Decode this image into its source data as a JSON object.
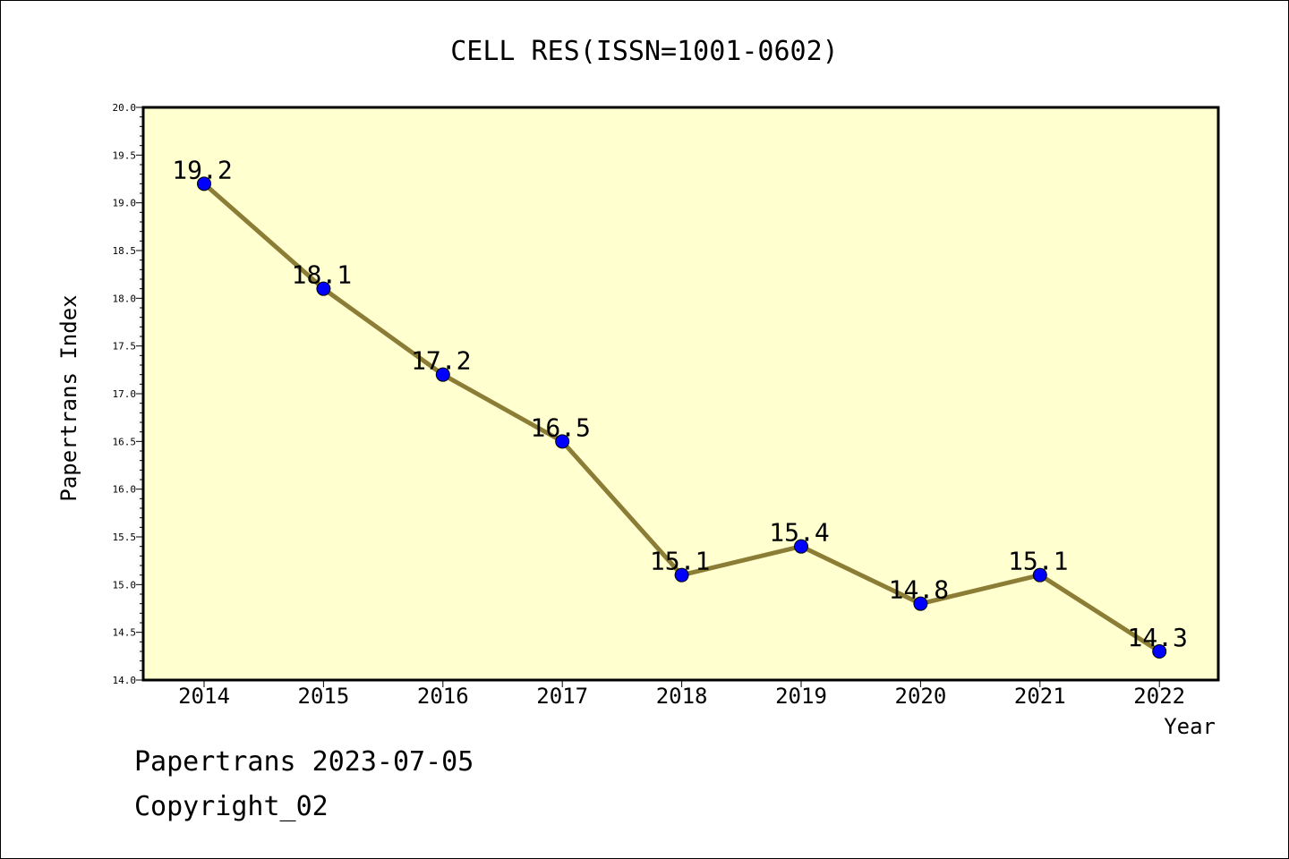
{
  "chart_data": {
    "type": "line",
    "title": "CELL RES(ISSN=1001-0602)",
    "xlabel": "Year",
    "ylabel": "Papertrans Index",
    "x": [
      "2014",
      "2015",
      "2016",
      "2017",
      "2018",
      "2019",
      "2020",
      "2021",
      "2022"
    ],
    "series": [
      {
        "values": [
          19.2,
          18.1,
          17.2,
          16.5,
          15.1,
          15.4,
          14.8,
          15.1,
          14.3
        ],
        "data_labels": [
          "19.2",
          "18.1",
          "17.2",
          "16.5",
          "15.1",
          "15.4",
          "14.8",
          "15.1",
          "14.3"
        ]
      }
    ],
    "ylim": [
      14.0,
      20.0
    ],
    "yticks": [
      "14.0",
      "14.5",
      "15.0",
      "15.5",
      "16.0",
      "16.5",
      "17.0",
      "17.5",
      "18.0",
      "18.5",
      "19.0",
      "19.5",
      "20.0"
    ],
    "grid": false,
    "colors": {
      "line": "#8b7d35",
      "marker": "#0000ff",
      "plot_background": "#ffffd0",
      "axis": "#000000"
    }
  },
  "footer": {
    "line1": "Papertrans 2023-07-05",
    "line2": "Copyright_02"
  }
}
